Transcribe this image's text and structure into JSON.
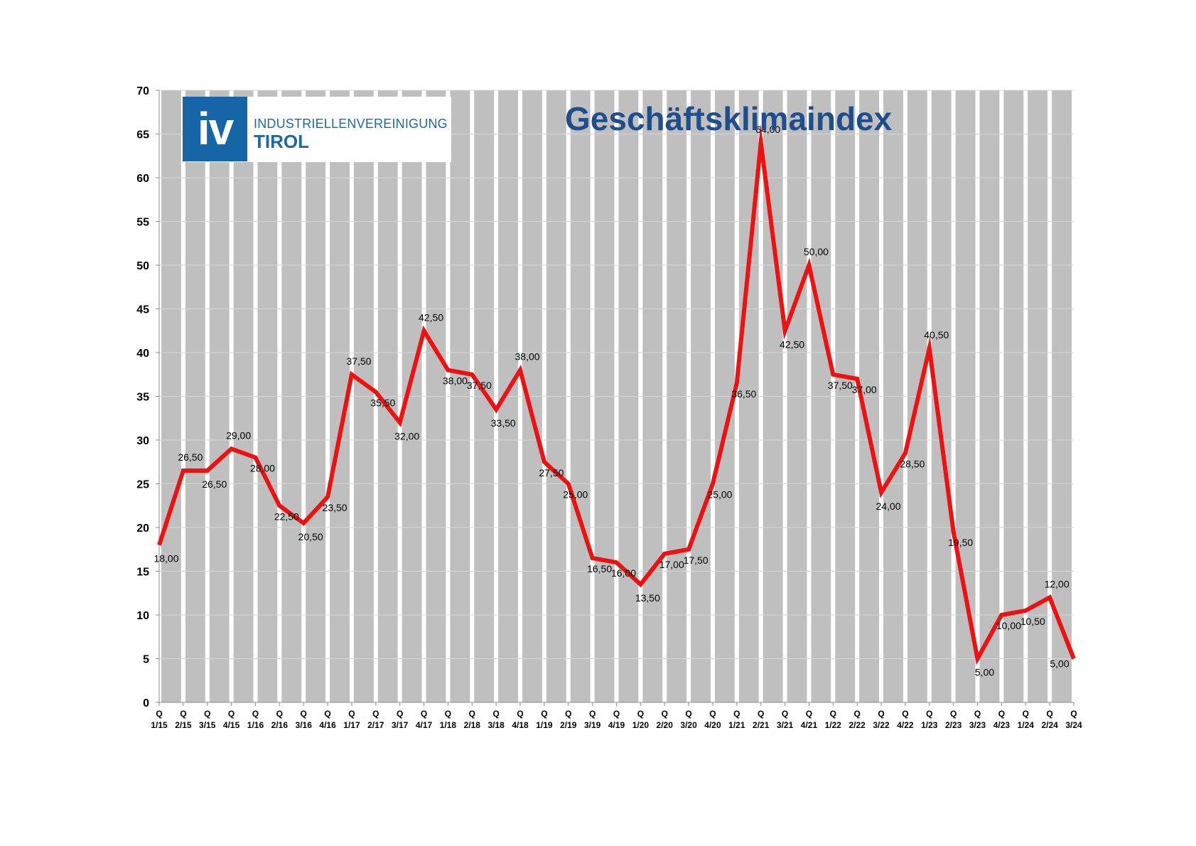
{
  "logo": {
    "mark": "iv",
    "line1": "INDUSTRIELLENVEREINIGUNG",
    "line2": "TIROL"
  },
  "colors": {
    "line": "#ee1111",
    "band_dark": "#bfbfbf",
    "band_light": "#ffffff",
    "title": "#1f4e8c",
    "logo_blue": "#1565a8"
  },
  "chart_data": {
    "type": "line",
    "title": "Geschäftsklimaindex",
    "xlabel": "",
    "ylabel": "",
    "ylim": [
      0,
      70
    ],
    "yticks": [
      "0",
      "5",
      "10",
      "15",
      "20",
      "25",
      "30",
      "35",
      "40",
      "45",
      "50",
      "55",
      "60",
      "65",
      "70"
    ],
    "grid": true,
    "legend": "none",
    "categories": [
      "1/15",
      "2/15",
      "3/15",
      "4/15",
      "1/16",
      "2/16",
      "3/16",
      "4/16",
      "1/17",
      "2/17",
      "3/17",
      "4/17",
      "1/18",
      "2/18",
      "3/18",
      "4/18",
      "1/19",
      "2/19",
      "3/19",
      "4/19",
      "1/20",
      "2/20",
      "3/20",
      "4/20",
      "1/21",
      "2/21",
      "3/21",
      "4/21",
      "1/22",
      "2/22",
      "3/22",
      "4/22",
      "1/23",
      "2/23",
      "3/23",
      "4/23",
      "1/24",
      "2/24",
      "3/24"
    ],
    "category_prefix": "Q",
    "values": [
      18.0,
      26.5,
      26.5,
      29.0,
      28.0,
      22.5,
      20.5,
      23.5,
      37.5,
      35.5,
      32.0,
      42.5,
      38.0,
      37.5,
      33.5,
      38.0,
      27.5,
      25.0,
      16.5,
      16.0,
      13.5,
      17.0,
      17.5,
      25.0,
      36.5,
      64.0,
      42.5,
      50.0,
      37.5,
      37.0,
      24.0,
      28.5,
      40.5,
      19.5,
      5.0,
      10.0,
      10.5,
      12.0,
      5.0
    ],
    "data_labels": [
      "18,00",
      "26,50",
      "26,50",
      "29,00",
      "28,00",
      "22,50",
      "20,50",
      "23,50",
      "37,50",
      "35,50",
      "32,00",
      "42,50",
      "38,00",
      "37,50",
      "33,50",
      "38,00",
      "27,50",
      "25,00",
      "16,50",
      "16,00",
      "13,50",
      "17,00",
      "17,50",
      "25,00",
      "36,50",
      "64,00",
      "42,50",
      "50,00",
      "37,50",
      "37,00",
      "24,00",
      "28,50",
      "40,50",
      "19,50",
      "5,00",
      "10,00",
      "10,50",
      "12,00",
      "5,00"
    ]
  }
}
